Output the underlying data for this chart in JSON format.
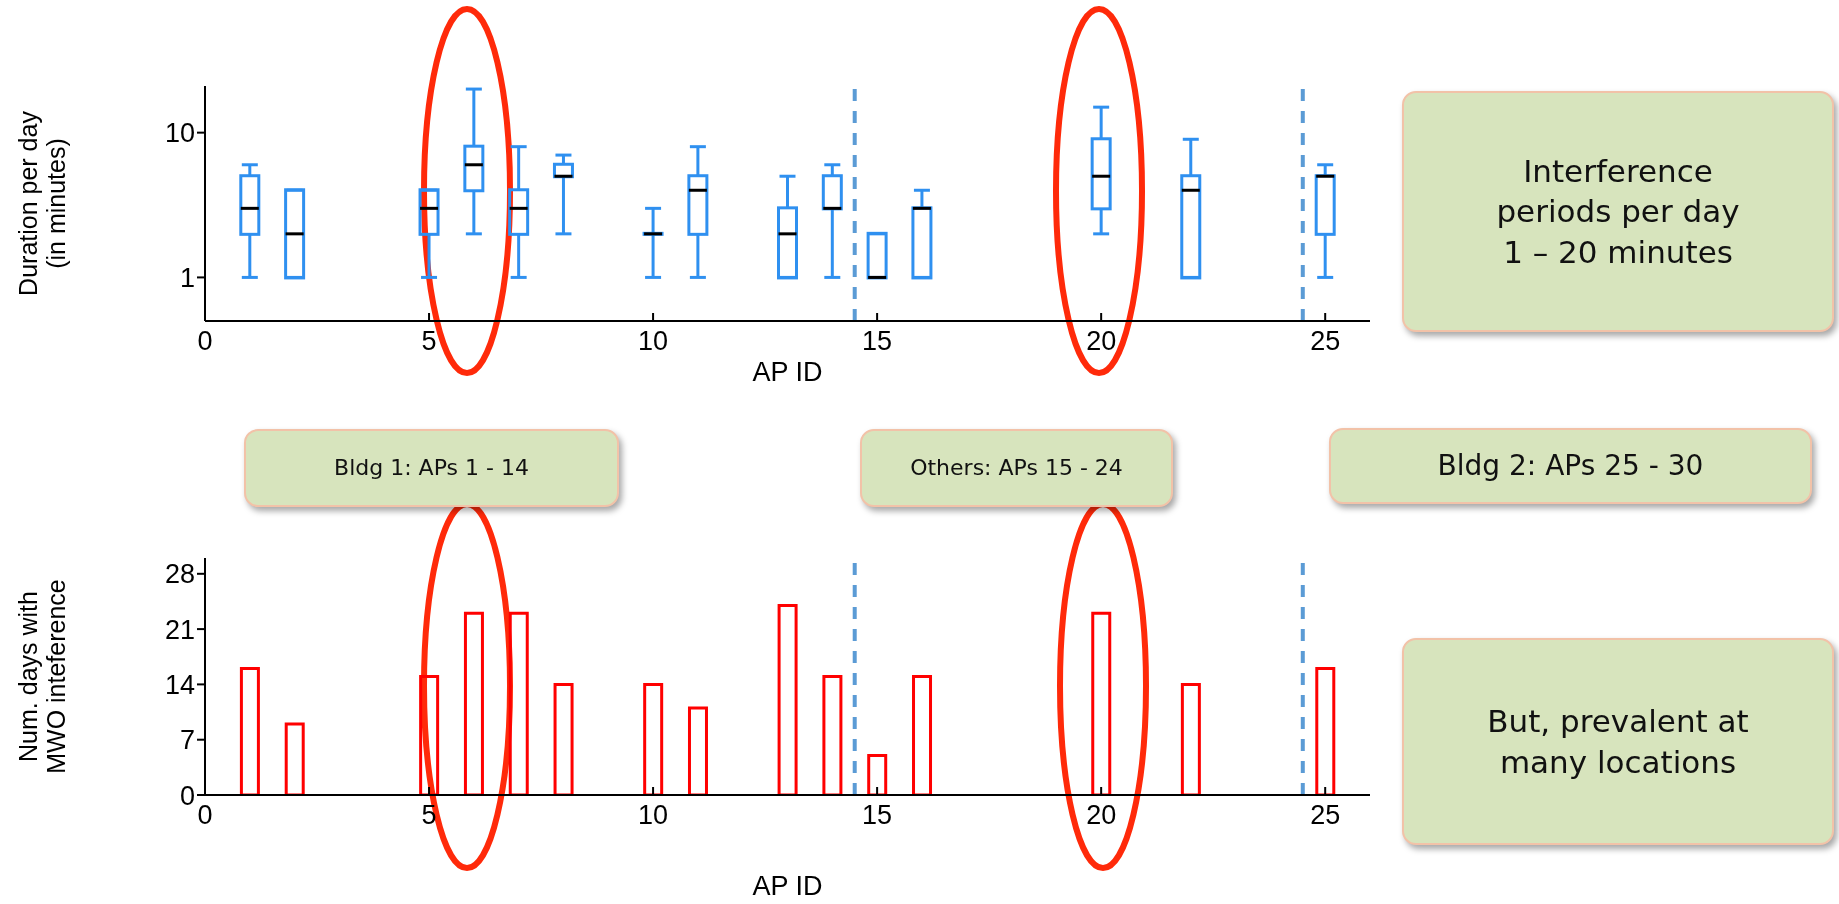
{
  "chart_data": [
    {
      "type": "box",
      "xlabel": "AP ID",
      "ylabel": "Duration per day\n(in minutes)",
      "color": "#2f90f0",
      "x": [
        1,
        2,
        5,
        6,
        7,
        8,
        10,
        11,
        13,
        14,
        15,
        16,
        20,
        22,
        25
      ],
      "boxes": [
        {
          "low": 1,
          "q1": 2,
          "median": 3,
          "q3": 5,
          "high": 6
        },
        {
          "low": 1,
          "q1": 1,
          "median": 2,
          "q3": 4,
          "high": 4
        },
        {
          "low": 1,
          "q1": 2,
          "median": 3,
          "q3": 4,
          "high": 4
        },
        {
          "low": 2,
          "q1": 4,
          "median": 6,
          "q3": 8,
          "high": 20
        },
        {
          "low": 1,
          "q1": 2,
          "median": 3,
          "q3": 4,
          "high": 8
        },
        {
          "low": 2,
          "q1": 5,
          "median": 5,
          "q3": 6,
          "high": 7
        },
        {
          "low": 1,
          "q1": 2,
          "median": 2,
          "q3": 2,
          "high": 3
        },
        {
          "low": 1,
          "q1": 2,
          "median": 4,
          "q3": 5,
          "high": 8
        },
        {
          "low": 1,
          "q1": 1,
          "median": 2,
          "q3": 3,
          "high": 5
        },
        {
          "low": 1,
          "q1": 3,
          "median": 3,
          "q3": 5,
          "high": 6
        },
        {
          "low": 1,
          "q1": 1,
          "median": 1,
          "q3": 2,
          "high": 2
        },
        {
          "low": 1,
          "q1": 1,
          "median": 3,
          "q3": 3,
          "high": 4
        },
        {
          "low": 2,
          "q1": 3,
          "median": 5,
          "q3": 9,
          "high": 15
        },
        {
          "low": 1,
          "q1": 1,
          "median": 4,
          "q3": 5,
          "high": 9
        },
        {
          "low": 1,
          "q1": 2,
          "median": 5,
          "q3": 5,
          "high": 6
        }
      ],
      "log": true,
      "xlim": [
        0,
        26
      ],
      "xticks": [
        0,
        5,
        10,
        15,
        20,
        25
      ],
      "ylim": [
        0.5,
        21
      ],
      "yticks": [
        1,
        10
      ],
      "ref_lines": [
        {
          "axis": "x",
          "value": 14.5,
          "color": "#5b9bd5",
          "line_style": "dashed"
        },
        {
          "axis": "x",
          "value": 24.5,
          "color": "#5b9bd5",
          "line_style": "dashed"
        }
      ],
      "annotations": [
        "Interference periods per day 1 – 20 minutes"
      ]
    },
    {
      "type": "bar",
      "xlabel": "AP ID",
      "ylabel": "Num. days with\nMWO inteference",
      "color": "#ff0000",
      "x": [
        1,
        2,
        5,
        6,
        7,
        8,
        10,
        11,
        13,
        14,
        15,
        16,
        20,
        22,
        25
      ],
      "values": [
        16,
        9,
        15,
        23,
        23,
        14,
        14,
        11,
        24,
        15,
        5,
        15,
        23,
        14,
        16
      ],
      "xlim": [
        0,
        26
      ],
      "xticks": [
        0,
        5,
        10,
        15,
        20,
        25
      ],
      "ylim": [
        0,
        30
      ],
      "yticks": [
        0,
        7,
        14,
        21,
        28
      ],
      "ref_lines": [
        {
          "axis": "x",
          "value": 14.5,
          "color": "#5b9bd5",
          "line_style": "dashed"
        },
        {
          "axis": "x",
          "value": 24.5,
          "color": "#5b9bd5",
          "line_style": "dashed"
        }
      ],
      "annotations": [
        "Bldg 1: APs 1 - 14",
        "Others: APs 15 - 24",
        "Bldg 2: APs 25 - 30",
        "But, prevalent at many locations"
      ]
    }
  ]
}
